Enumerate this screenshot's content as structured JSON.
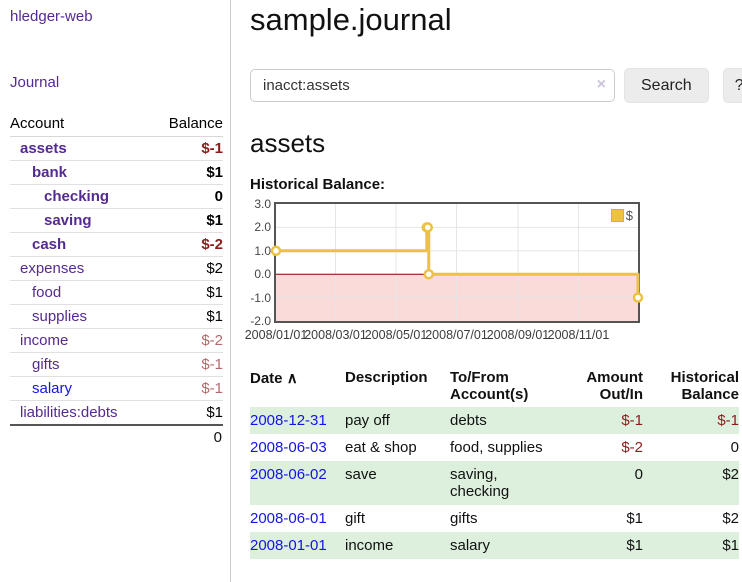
{
  "colors": {
    "brand_purple": "#552a92",
    "link_blue": "#1414e6",
    "negative_dark_red": "#8b1c1c",
    "negative_soft_red": "#b36a6a",
    "table_row_green": "#ddefdd",
    "chart_line_gold": "#edc240",
    "chart_negative_pink": "#fbdada",
    "chart_zero_line_red": "#8b0000"
  },
  "sidebar": {
    "brand": "hledger-web",
    "nav_journal": "Journal",
    "accounts_table": {
      "col_account": "Account",
      "col_balance": "Balance",
      "rows": [
        {
          "name": "assets",
          "balance": "$-1"
        },
        {
          "name": "bank",
          "balance": "$1"
        },
        {
          "name": "checking",
          "balance": "0"
        },
        {
          "name": "saving",
          "balance": "$1"
        },
        {
          "name": "cash",
          "balance": "$-2"
        },
        {
          "name": "expenses",
          "balance": "$2"
        },
        {
          "name": "food",
          "balance": "$1"
        },
        {
          "name": "supplies",
          "balance": "$1"
        },
        {
          "name": "income",
          "balance": "$-2"
        },
        {
          "name": "gifts",
          "balance": "$-1"
        },
        {
          "name": "salary",
          "balance": "$-1"
        },
        {
          "name": "liabilities:debts",
          "balance": "$1"
        }
      ],
      "total": "0"
    }
  },
  "header": {
    "title": "sample.journal"
  },
  "search": {
    "value": "inacct:assets",
    "clear_icon": "×",
    "search_button": "Search",
    "help_button": "?"
  },
  "account_page": {
    "heading": "assets",
    "chart_label": "Historical Balance:"
  },
  "chart_data": {
    "type": "line",
    "step": true,
    "title": "Historical Balance",
    "legend": "$",
    "legend_position": "top-right",
    "grid": true,
    "x_range": [
      "2008-01-01",
      "2008-12-31"
    ],
    "y_range": [
      -2.0,
      3.0
    ],
    "y_ticks": [
      "3.0",
      "2.0",
      "1.0",
      "0.0",
      "-1.0",
      "-2.0"
    ],
    "x_ticks": [
      "2008/01/01",
      "2008/03/01",
      "2008/05/01",
      "2008/07/01",
      "2008/09/01",
      "2008/11/01"
    ],
    "series": [
      {
        "name": "$",
        "color": "#edc240",
        "points": [
          [
            "2008-01-01",
            1
          ],
          [
            "2008-06-01",
            2
          ],
          [
            "2008-06-02",
            2
          ],
          [
            "2008-06-03",
            0
          ],
          [
            "2008-12-31",
            -1
          ]
        ]
      }
    ],
    "negative_region_color": "#fbdada",
    "zero_line_color": "#8b0000",
    "gridline_color": "#e6e6e6"
  },
  "register": {
    "columns": {
      "date": "Date",
      "sort_indicator": "∧",
      "description": "Description",
      "accounts": "To/From Account(s)",
      "amount": "Amount Out/In",
      "balance": "Historical Balance"
    },
    "rows": [
      {
        "date": "2008-12-31",
        "description": "pay off",
        "accounts": "debts",
        "amount": "$-1",
        "balance": "$-1"
      },
      {
        "date": "2008-06-03",
        "description": "eat & shop",
        "accounts": "food, supplies",
        "amount": "$-2",
        "balance": "0"
      },
      {
        "date": "2008-06-02",
        "description": "save",
        "accounts": "saving,\nchecking",
        "amount": "0",
        "balance": "$2"
      },
      {
        "date": "2008-06-01",
        "description": "gift",
        "accounts": "gifts",
        "amount": "$1",
        "balance": "$2"
      },
      {
        "date": "2008-01-01",
        "description": "income",
        "accounts": "salary",
        "amount": "$1",
        "balance": "$1"
      }
    ]
  }
}
